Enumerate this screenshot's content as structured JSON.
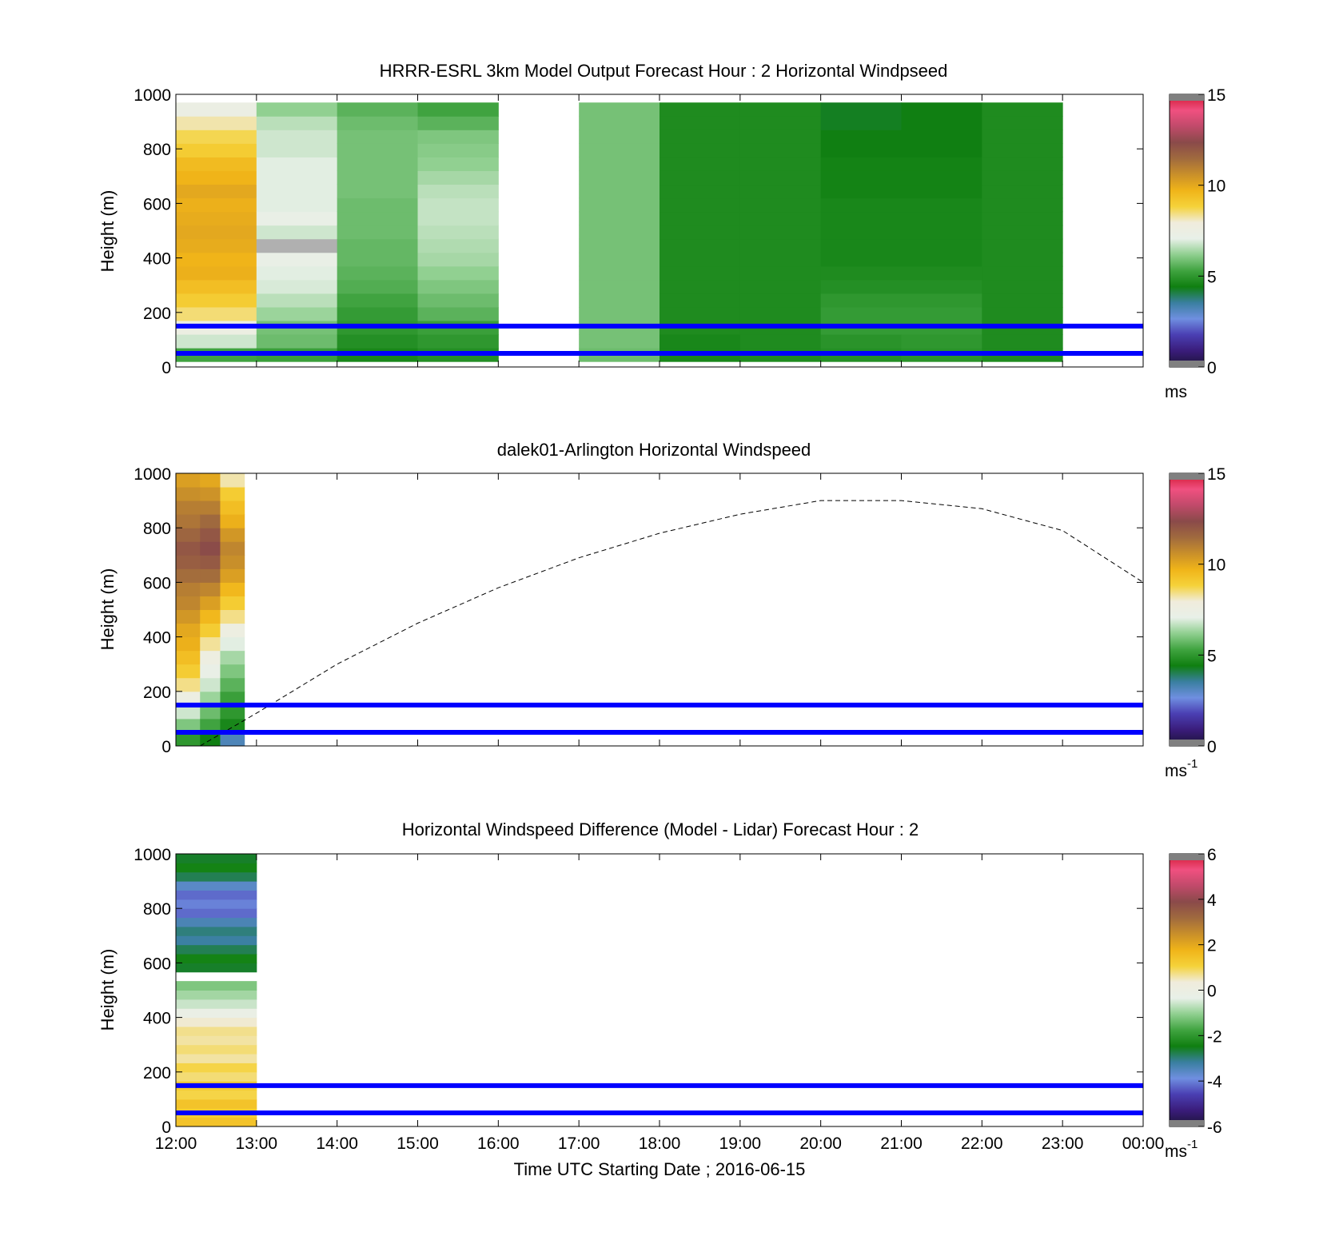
{
  "colors": {
    "blue_line": "#0000ff",
    "colormap": [
      "#1b1436",
      "#3a1c7a",
      "#4a3fb2",
      "#6f8fe0",
      "#3a7fa0",
      "#0f7f10",
      "#3fa33f",
      "#8fcf8f",
      "#e8f0e8",
      "#f0ecdc",
      "#f5d23a",
      "#f0b419",
      "#c98f2a",
      "#a06a3e",
      "#8a4a4a",
      "#c04a6a",
      "#f05080",
      "#d01830"
    ]
  },
  "common": {
    "x_ticks": [
      "12:00",
      "13:00",
      "14:00",
      "15:00",
      "16:00",
      "17:00",
      "18:00",
      "19:00",
      "20:00",
      "21:00",
      "22:00",
      "23:00",
      "00:00"
    ],
    "y_ticks": [
      "0",
      "200",
      "400",
      "600",
      "800",
      "1000"
    ],
    "ylabel": "Height (m)",
    "xlabel": "Time UTC  Starting Date ; 2016-06-15"
  },
  "chart_data": [
    {
      "type": "heatmap",
      "title": "HRRR-ESRL 3km Model Output   Forecast Hour : 2 Horizontal Windpseed",
      "ylabel": "Height (m)",
      "xlim_hours": [
        12,
        24
      ],
      "ylim": [
        0,
        1000
      ],
      "colorbar": {
        "min": 0,
        "max": 15,
        "ticks": [
          "0",
          "5",
          "10",
          "15"
        ],
        "unit": "ms"
      },
      "reference_lines_m": [
        150,
        50
      ],
      "columns": [
        {
          "x_start": 12,
          "speeds_bottom_to_top": [
            5.3,
            6.8,
            7.5,
            8.5,
            9.0,
            9.4,
            9.8,
            9.7,
            9.9,
            10.0,
            9.9,
            9.8,
            10.0,
            9.7,
            9.5,
            9.0,
            8.7,
            8.2,
            7.4
          ]
        },
        {
          "x_start": 13,
          "speeds_bottom_to_top": [
            5.2,
            5.8,
            5.9,
            6.3,
            6.6,
            6.9,
            7.0,
            7.2,
            7.5,
            6.8,
            7.2,
            7.0,
            7.0,
            7.0,
            7.0,
            6.8,
            6.8,
            6.6,
            6.2
          ]
        },
        {
          "x_start": 14,
          "speeds_bottom_to_top": [
            4.6,
            4.8,
            5.0,
            5.1,
            5.3,
            5.5,
            5.6,
            5.7,
            5.7,
            5.8,
            5.8,
            5.8,
            5.9,
            5.9,
            5.9,
            5.9,
            5.9,
            5.8,
            5.6
          ]
        },
        {
          "x_start": 15,
          "speeds_bottom_to_top": [
            4.8,
            5.0,
            5.2,
            5.6,
            5.8,
            6.0,
            6.2,
            6.4,
            6.5,
            6.6,
            6.7,
            6.7,
            6.6,
            6.4,
            6.2,
            6.1,
            6.0,
            5.6,
            5.3
          ]
        },
        {
          "x_start": 16,
          "speeds_bottom_to_top": []
        },
        {
          "x_start": 17,
          "speeds_bottom_to_top": [
            5.8,
            5.9,
            5.9,
            5.9,
            5.9,
            5.9,
            5.9,
            5.9,
            5.9,
            5.9,
            5.9,
            5.9,
            5.9,
            5.9,
            5.9,
            5.9,
            5.9,
            5.9,
            5.9
          ]
        },
        {
          "x_start": 18,
          "speeds_bottom_to_top": [
            4.6,
            4.6,
            4.7,
            4.7,
            4.7,
            4.7,
            4.7,
            4.7,
            4.7,
            4.7,
            4.7,
            4.7,
            4.7,
            4.7,
            4.7,
            4.7,
            4.7,
            4.7,
            4.7
          ]
        },
        {
          "x_start": 19,
          "speeds_bottom_to_top": [
            4.7,
            4.7,
            4.7,
            4.7,
            4.7,
            4.7,
            4.7,
            4.7,
            4.7,
            4.7,
            4.7,
            4.7,
            4.7,
            4.7,
            4.7,
            4.7,
            4.7,
            4.7,
            4.7
          ]
        },
        {
          "x_start": 20,
          "speeds_bottom_to_top": [
            4.8,
            4.9,
            5.1,
            5.1,
            5.0,
            4.8,
            4.7,
            4.6,
            4.6,
            4.6,
            4.6,
            4.6,
            4.5,
            4.5,
            4.5,
            4.4,
            4.4,
            4.3,
            4.3
          ]
        },
        {
          "x_start": 21,
          "speeds_bottom_to_top": [
            4.9,
            5.0,
            5.1,
            5.1,
            5.0,
            4.8,
            4.7,
            4.6,
            4.6,
            4.6,
            4.6,
            4.6,
            4.5,
            4.5,
            4.5,
            4.4,
            4.4,
            4.4,
            4.4
          ]
        },
        {
          "x_start": 22,
          "speeds_bottom_to_top": [
            4.7,
            4.7,
            4.7,
            4.7,
            4.7,
            4.7,
            4.7,
            4.7,
            4.7,
            4.7,
            4.7,
            4.7,
            4.7,
            4.7,
            4.7,
            4.7,
            4.7,
            4.7,
            4.7
          ]
        },
        {
          "x_start": 23,
          "speeds_bottom_to_top": []
        }
      ]
    },
    {
      "type": "heatmap",
      "title": "dalek01-Arlington  Horizontal Windspeed",
      "ylabel": "Height (m)",
      "xlim_hours": [
        12,
        24
      ],
      "ylim": [
        0,
        1000
      ],
      "colorbar": {
        "min": 0,
        "max": 15,
        "ticks": [
          "0",
          "5",
          "10",
          "15"
        ],
        "unit": "ms",
        "unit_exp": "-1"
      },
      "reference_lines_m": [
        150,
        50
      ],
      "columns": [
        {
          "x_start": 12.0,
          "x_end": 12.3,
          "speeds_bottom_to_top": [
            5.0,
            6.0,
            6.8,
            7.5,
            8.4,
            9.0,
            9.4,
            9.8,
            10.0,
            10.4,
            10.8,
            11.0,
            11.4,
            11.8,
            12.0,
            11.6,
            11.2,
            11.0,
            10.6,
            10.2
          ]
        },
        {
          "x_start": 12.3,
          "x_end": 12.55,
          "speeds_bottom_to_top": [
            4.4,
            5.3,
            5.8,
            6.3,
            6.8,
            7.2,
            7.6,
            8.3,
            9.0,
            9.6,
            10.2,
            10.8,
            11.4,
            11.9,
            12.3,
            12.0,
            11.5,
            11.0,
            10.5,
            10.0
          ]
        },
        {
          "x_start": 12.55,
          "x_end": 12.85,
          "speeds_bottom_to_top": [
            3.2,
            4.6,
            5.0,
            5.2,
            5.6,
            6.0,
            6.4,
            7.0,
            7.6,
            8.4,
            9.0,
            9.6,
            10.2,
            10.6,
            10.8,
            10.4,
            9.8,
            9.4,
            9.0,
            8.2
          ]
        }
      ],
      "dashed_curve": {
        "x_hours": [
          12.3,
          13,
          14,
          15,
          16,
          17,
          18,
          19,
          20,
          21,
          22,
          23,
          24
        ],
        "y_m": [
          0,
          120,
          300,
          450,
          580,
          690,
          780,
          850,
          900,
          900,
          870,
          790,
          600
        ]
      }
    },
    {
      "type": "heatmap",
      "title": "Horizontal Windspeed Difference (Model - Lidar) Forecast Hour : 2",
      "ylabel": "Height (m)",
      "xlabel": "Time UTC  Starting Date ; 2016-06-15",
      "xlim_hours": [
        12,
        24
      ],
      "ylim": [
        0,
        1000
      ],
      "colorbar": {
        "min": -6,
        "max": 6,
        "ticks": [
          "-6",
          "-4",
          "-2",
          "0",
          "2",
          "4",
          "6"
        ],
        "unit": "ms",
        "unit_exp": "-1"
      },
      "reference_lines_m": [
        150,
        50
      ],
      "columns": [
        {
          "x_start": 12,
          "x_end": 13,
          "diff_bottom_to_top": [
            1.4,
            1.2,
            1.4,
            1.0,
            1.2,
            0.8,
            1.0,
            0.6,
            0.8,
            0.6,
            0.7,
            0.4,
            -0.2,
            -0.6,
            -0.9,
            -1.2,
            null,
            -2.6,
            -2.4,
            -2.8,
            -3.2,
            -3.0,
            -3.4,
            -4.2,
            -4.0,
            -4.2,
            -3.6,
            -2.8,
            -2.4,
            -2.6
          ]
        }
      ]
    }
  ]
}
